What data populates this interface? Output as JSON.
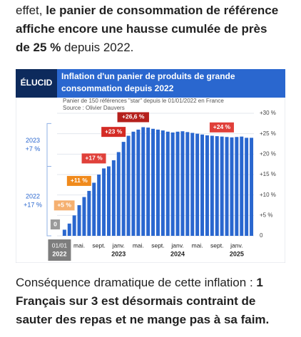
{
  "intro": {
    "before": "effet,",
    "bold": " le panier de consommation de référence affiche encore une hausse cumulée de près de 25 %",
    "after": " depuis 2022."
  },
  "logo": "ÉLUCID",
  "chart_data": {
    "type": "bar",
    "title": "Inflation d'un panier de produits de grande consommation depuis 2022",
    "subtitle": "Panier de 150 références \"star\" depuis le 01/01/2022 en France",
    "source": "Source : Olivier Dauvers",
    "color": "#2a67cf",
    "categories": [
      "01/01",
      null,
      null,
      null,
      "mai.",
      null,
      null,
      null,
      "sept.",
      null,
      null,
      null,
      "janv.",
      null,
      null,
      null,
      "mai.",
      null,
      null,
      null,
      "sept.",
      null,
      null,
      null,
      "janv.",
      null,
      null,
      null,
      "mai.",
      null,
      null,
      null,
      "sept.",
      null,
      null,
      null,
      "janv.",
      null,
      null,
      null
    ],
    "category_groups": [
      "2022",
      "2023",
      "2024",
      "2025"
    ],
    "values": [
      0,
      1.5,
      3,
      5,
      7.5,
      9.5,
      11,
      13,
      15,
      16.5,
      17,
      18.5,
      20.5,
      23,
      24.5,
      25.5,
      26,
      26.6,
      26.5,
      26.2,
      26,
      25.8,
      25.5,
      25.3,
      25.5,
      25.6,
      25.4,
      25.2,
      25,
      24.8,
      24.6,
      24.5,
      24.4,
      24.3,
      24.2,
      24.1,
      24.2,
      24.3,
      24,
      24
    ],
    "value_labels": [
      "0",
      null,
      null,
      "+5 %",
      null,
      null,
      "+11 %",
      null,
      null,
      "+17 %",
      null,
      null,
      null,
      "+23 %",
      null,
      null,
      null,
      "+26,6 %",
      null,
      null,
      null,
      null,
      null,
      null,
      null,
      null,
      null,
      null,
      null,
      null,
      null,
      null,
      null,
      null,
      null,
      "+24 %",
      null,
      null,
      null,
      null
    ],
    "ylim": [
      0,
      30
    ],
    "yticks": [
      0,
      {
        "value": 5,
        "label": "+5 %"
      },
      {
        "value": 10,
        "label": "+10 %"
      },
      {
        "value": 15,
        "label": "+15 %"
      },
      {
        "value": 20,
        "label": "+20 %"
      },
      {
        "value": 25,
        "label": "+25 %"
      },
      {
        "value": 30,
        "label": "+30 %"
      }
    ],
    "grid": true,
    "annotations": [
      {
        "year": "2023",
        "change": "+7 %"
      },
      {
        "year": "2022",
        "change": "+17 %"
      }
    ]
  },
  "outro": {
    "before": "Conséquence dramatique de cette inflation : ",
    "bold": "1 Français sur 3 est désormais contraint de sauter des repas et ne mange pas à sa faim."
  }
}
